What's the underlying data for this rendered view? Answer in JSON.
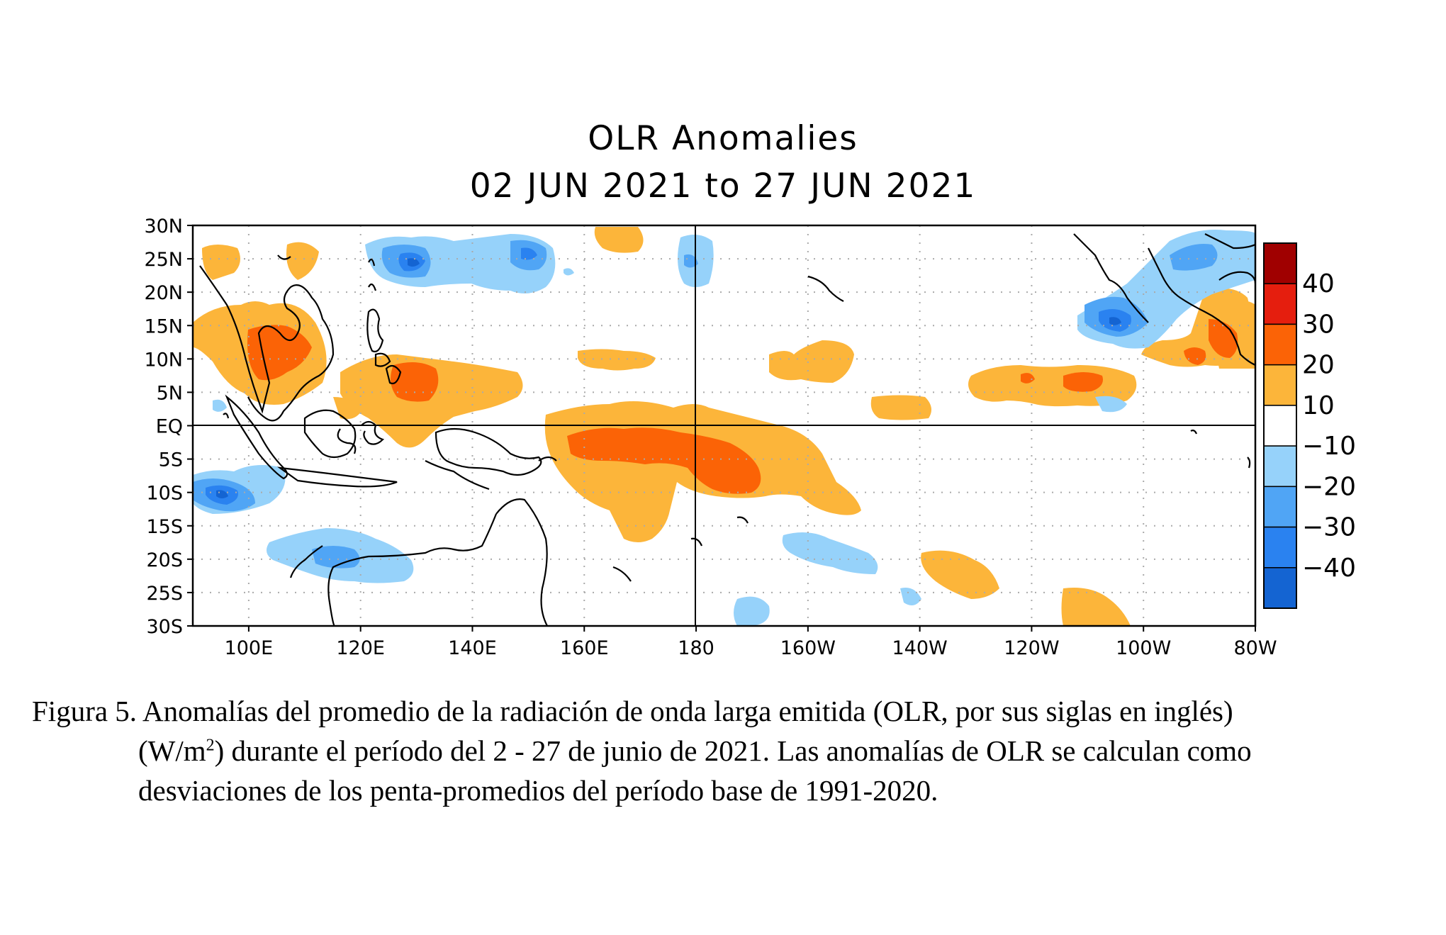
{
  "title": {
    "line1": "OLR Anomalies",
    "line2": "02 JUN 2021 to 27 JUN 2021"
  },
  "map": {
    "lat_labels": [
      "30N",
      "25N",
      "20N",
      "15N",
      "10N",
      "5N",
      "EQ",
      "5S",
      "10S",
      "15S",
      "20S",
      "25S",
      "30S"
    ],
    "lon_labels": [
      "100E",
      "120E",
      "140E",
      "160E",
      "180",
      "160W",
      "140W",
      "120W",
      "100W",
      "80W"
    ],
    "extent": {
      "lon_min": 90,
      "lon_max": 280,
      "lat_min": -30,
      "lat_max": 30
    },
    "colors": {
      "coast": "#000000",
      "grid": "#aaaaaa"
    }
  },
  "colorbar": {
    "labels": [
      "40",
      "30",
      "20",
      "10",
      "−10",
      "−20",
      "−30",
      "−40"
    ],
    "bins": [
      {
        "range": "> 40",
        "color": "#a00000"
      },
      {
        "range": "30 to 40",
        "color": "#e51e0e"
      },
      {
        "range": "20 to 30",
        "color": "#fb6306"
      },
      {
        "range": "10 to 20",
        "color": "#fcb53a"
      },
      {
        "range": "-10 to 10",
        "color": "#ffffff"
      },
      {
        "range": "-20 to -10",
        "color": "#96d2fa"
      },
      {
        "range": "-30 to -20",
        "color": "#50a5f5"
      },
      {
        "range": "-40 to -30",
        "color": "#2a82f0"
      },
      {
        "range": "< -40",
        "color": "#1464d2"
      }
    ]
  },
  "caption": {
    "line1": "Figura 5. Anomalías del promedio de la radiación de onda larga emitida (OLR, por sus siglas en inglés)",
    "line2_a": "(W/m",
    "line2_sup": "2",
    "line2_b": ") durante el período del 2 - 27 de junio de 2021.  Las anomalías de OLR se calculan como",
    "line3": "desviaciones de los penta-promedios del período base de 1991-2020."
  }
}
